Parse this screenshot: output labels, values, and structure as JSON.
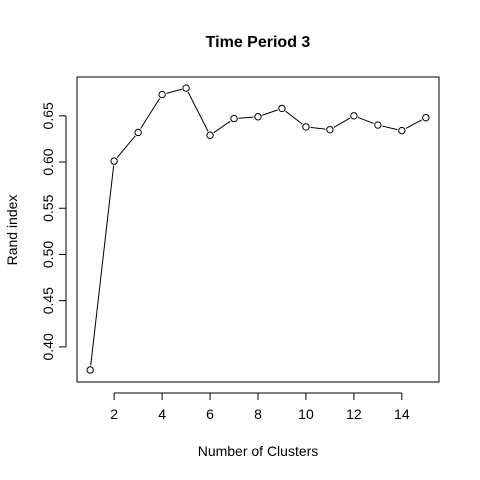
{
  "chart_data": {
    "type": "line",
    "title": "Time Period 3",
    "xlabel": "Number of Clusters",
    "ylabel": "Rand index",
    "xlim": [
      0.45,
      15.55
    ],
    "ylim": [
      0.362,
      0.692
    ],
    "x_ticks": [
      2,
      4,
      6,
      8,
      10,
      12,
      14
    ],
    "y_ticks": [
      0.4,
      0.45,
      0.5,
      0.55,
      0.6,
      0.65
    ],
    "y_tick_labels": [
      "0.40",
      "0.45",
      "0.50",
      "0.55",
      "0.60",
      "0.65"
    ],
    "x": [
      1,
      2,
      3,
      4,
      5,
      6,
      7,
      8,
      9,
      10,
      11,
      12,
      13,
      14,
      15
    ],
    "y": [
      0.375,
      0.601,
      0.632,
      0.673,
      0.68,
      0.629,
      0.647,
      0.649,
      0.658,
      0.638,
      0.635,
      0.65,
      0.64,
      0.634,
      0.648
    ],
    "grid": false,
    "markers": "open-circle"
  }
}
